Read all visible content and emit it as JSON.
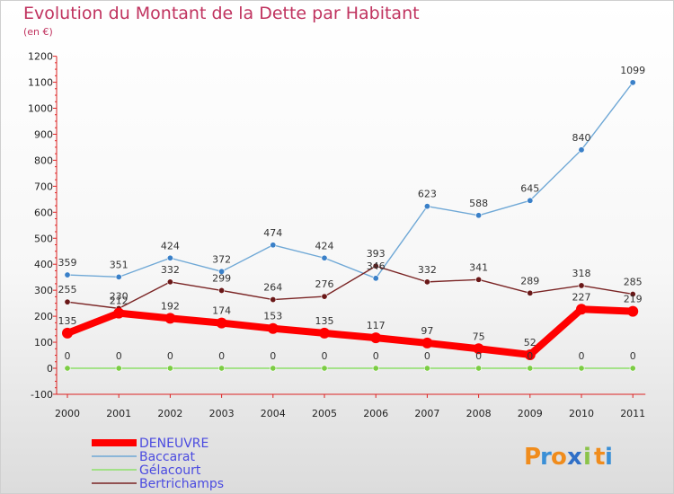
{
  "header": {
    "title": "Evolution du Montant de la Dette par Habitant",
    "subtitle": "(en €)"
  },
  "logo": {
    "letters": [
      "P",
      "r",
      "o",
      "x",
      "i",
      "t",
      "i"
    ],
    "colors": [
      "#f08c1c",
      "#3a8fd6",
      "#f08c1c",
      "#2f6fc7",
      "#8bc34a",
      "#f08c1c",
      "#3a8fd6"
    ]
  },
  "chart_data": {
    "type": "line",
    "title": "Evolution du Montant de la Dette par Habitant",
    "subtitle": "(en €)",
    "xlabel": "",
    "ylabel": "",
    "categories": [
      "2000",
      "2001",
      "2002",
      "2003",
      "2004",
      "2005",
      "2006",
      "2007",
      "2008",
      "2009",
      "2010",
      "2011"
    ],
    "ylim": [
      -100,
      1200
    ],
    "yticks": [
      -100,
      0,
      100,
      200,
      300,
      400,
      500,
      600,
      700,
      800,
      900,
      1000,
      1100,
      1200
    ],
    "grid": false,
    "legend": "bottom-left",
    "series": [
      {
        "name": "DENEUVRE",
        "color": "#ff0000",
        "width": 8,
        "values": [
          135,
          212,
          192,
          174,
          153,
          135,
          117,
          97,
          75,
          52,
          227,
          219
        ],
        "labels": [
          "135",
          "212",
          "192",
          "174",
          "153",
          "135",
          "117",
          "97",
          "75",
          "52",
          "227",
          "219"
        ]
      },
      {
        "name": "Baccarat",
        "color": "#6fa8d6",
        "width": 1.4,
        "values": [
          359,
          351,
          424,
          372,
          474,
          424,
          346,
          623,
          588,
          645,
          840,
          1099
        ],
        "labels": [
          "359",
          "351",
          "424",
          "372",
          "474",
          "424",
          "346",
          "623",
          "588",
          "645",
          "840",
          "1099"
        ]
      },
      {
        "name": "Gélacourt",
        "color": "#8ee06a",
        "width": 1.4,
        "values": [
          0,
          0,
          0,
          0,
          0,
          0,
          0,
          0,
          0,
          0,
          0,
          0
        ],
        "labels": [
          "0",
          "0",
          "0",
          "0",
          "0",
          "0",
          "0",
          "0",
          "0",
          "0",
          "0",
          "0"
        ]
      },
      {
        "name": "Bertrichamps",
        "color": "#7a2424",
        "width": 1.4,
        "values": [
          255,
          230,
          332,
          299,
          264,
          276,
          393,
          332,
          341,
          289,
          318,
          285
        ],
        "labels": [
          "255",
          "230",
          "332",
          "299",
          "264",
          "276",
          "393",
          "332",
          "341",
          "289",
          "318",
          "285"
        ]
      }
    ]
  }
}
